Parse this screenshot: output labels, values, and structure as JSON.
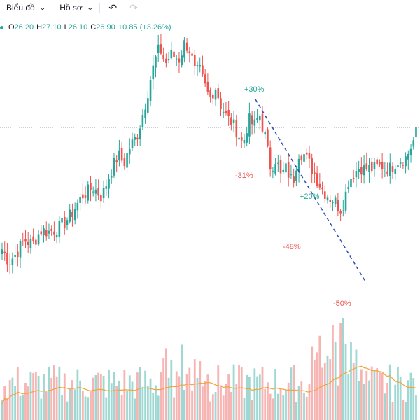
{
  "toolbar": {
    "chart_label": "Biểu đồ",
    "profile_label": "Hồ sơ",
    "undo_icon": "undo-icon",
    "redo_icon": "redo-icon"
  },
  "legend": {
    "open_label": "O",
    "open": "26.20",
    "high_label": "H",
    "high": "27.10",
    "low_label": "L",
    "low": "26.10",
    "close_label": "C",
    "close": "26.90",
    "change": "+0.85 (+3.26%)"
  },
  "colors": {
    "up": "#26a69a",
    "down": "#ef5350",
    "up_volume": "#9fd8d3",
    "down_volume": "#f6b4b2",
    "ma_line": "#f2a33a",
    "trendline": "#2b4fb3",
    "price_line": "#9aa0ac"
  },
  "annotations": [
    {
      "text": "+30%",
      "kind": "up"
    },
    {
      "text": "-31%",
      "kind": "down"
    },
    {
      "text": "+20%",
      "kind": "up"
    },
    {
      "text": "-48%",
      "kind": "down"
    },
    {
      "text": "-50%",
      "kind": "down"
    }
  ],
  "chart_data": {
    "type": "candlestick",
    "last_price": 26.9,
    "close_path": [
      [
        0,
        19.2
      ],
      [
        5,
        18.4
      ],
      [
        10,
        18.9
      ],
      [
        16,
        19.8
      ],
      [
        22,
        19.5
      ],
      [
        28,
        20.4
      ],
      [
        34,
        20.3
      ],
      [
        42,
        20.6
      ],
      [
        50,
        21.4
      ],
      [
        58,
        22.6
      ],
      [
        66,
        23.1
      ],
      [
        72,
        22.5
      ],
      [
        78,
        24.0
      ],
      [
        84,
        25.2
      ],
      [
        88,
        24.6
      ],
      [
        92,
        25.6
      ],
      [
        98,
        26.5
      ],
      [
        104,
        28.6
      ],
      [
        108,
        30.3
      ],
      [
        112,
        31.6
      ],
      [
        114,
        31.9
      ],
      [
        118,
        30.9
      ],
      [
        122,
        31.5
      ],
      [
        128,
        31.2
      ],
      [
        132,
        32.3
      ],
      [
        136,
        31.7
      ],
      [
        140,
        30.1
      ],
      [
        142,
        30.7
      ],
      [
        146,
        29.6
      ],
      [
        150,
        28.7
      ],
      [
        154,
        29.5
      ],
      [
        158,
        28.3
      ],
      [
        162,
        27.6
      ],
      [
        166,
        27.2
      ],
      [
        170,
        26.6
      ],
      [
        174,
        25.8
      ],
      [
        178,
        27.4
      ],
      [
        182,
        27.0
      ],
      [
        186,
        27.7
      ],
      [
        190,
        26.3
      ],
      [
        194,
        24.3
      ],
      [
        198,
        25.0
      ],
      [
        201,
        23.8
      ],
      [
        205,
        24.3
      ],
      [
        210,
        23.4
      ],
      [
        214,
        25.3
      ],
      [
        218,
        25.2
      ],
      [
        222,
        24.6
      ],
      [
        227,
        23.7
      ],
      [
        232,
        22.9
      ],
      [
        236,
        22.5
      ],
      [
        240,
        22.3
      ],
      [
        244,
        21.7
      ],
      [
        247,
        22.2
      ],
      [
        250,
        23.5
      ],
      [
        254,
        24.0
      ],
      [
        258,
        24.4
      ],
      [
        262,
        24.3
      ],
      [
        268,
        24.3
      ],
      [
        274,
        24.5
      ],
      [
        280,
        24.3
      ],
      [
        286,
        24.8
      ],
      [
        292,
        25.0
      ],
      [
        297,
        26.0
      ],
      [
        299,
        26.9
      ]
    ],
    "volume_ma": true
  }
}
